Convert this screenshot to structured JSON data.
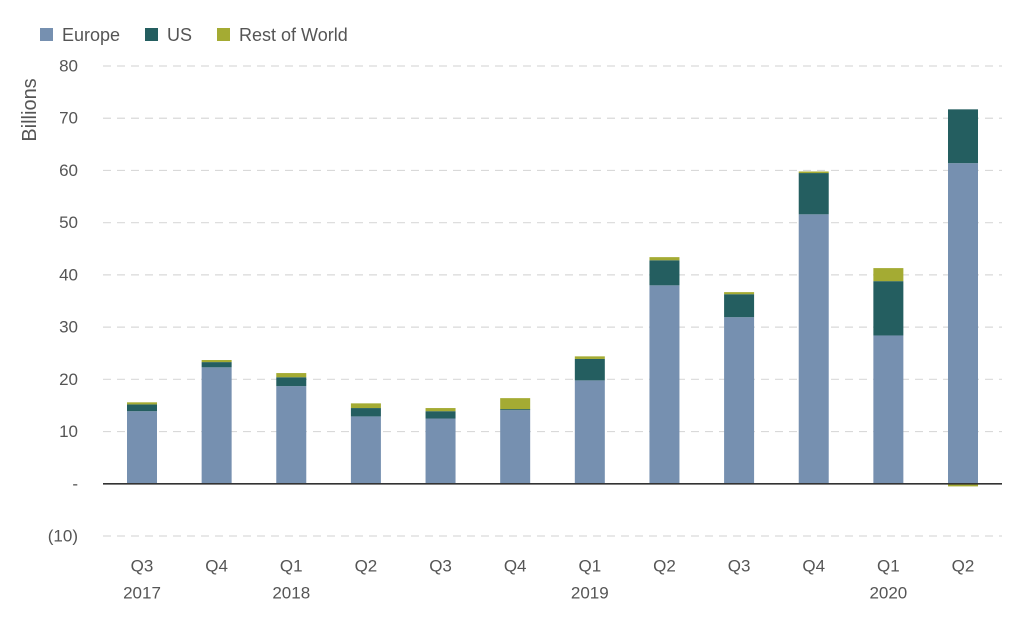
{
  "chart_data": {
    "type": "bar",
    "stacked": true,
    "title": "",
    "xlabel": "",
    "ylabel": "Billions",
    "ylim": [
      -10,
      80
    ],
    "yticks": [
      -10,
      0,
      10,
      20,
      30,
      40,
      50,
      60,
      70,
      80
    ],
    "ytick_labels": [
      "(10)",
      "-",
      "10",
      "20",
      "30",
      "40",
      "50",
      "60",
      "70",
      "80"
    ],
    "grid": true,
    "legend_position": "top-left",
    "categories": [
      "Q3 2017",
      "Q4 2017",
      "Q1 2018",
      "Q2 2018",
      "Q3 2018",
      "Q4 2018",
      "Q1 2019",
      "Q2 2019",
      "Q3 2019",
      "Q4 2019",
      "Q1 2020",
      "Q2 2020"
    ],
    "xtick_labels": [
      {
        "quarter": "Q3",
        "year": "2017"
      },
      {
        "quarter": "Q4",
        "year": ""
      },
      {
        "quarter": "Q1",
        "year": "2018"
      },
      {
        "quarter": "Q2",
        "year": ""
      },
      {
        "quarter": "Q3",
        "year": ""
      },
      {
        "quarter": "Q4",
        "year": ""
      },
      {
        "quarter": "Q1",
        "year": "2019"
      },
      {
        "quarter": "Q2",
        "year": ""
      },
      {
        "quarter": "Q3",
        "year": ""
      },
      {
        "quarter": "Q4",
        "year": ""
      },
      {
        "quarter": "Q1",
        "year": "2020"
      },
      {
        "quarter": "Q2",
        "year": ""
      }
    ],
    "series": [
      {
        "name": "Europe",
        "color": "#7690B0",
        "values": [
          13.9,
          22.3,
          18.7,
          12.9,
          12.5,
          14.1,
          19.8,
          38.0,
          31.9,
          51.6,
          28.4,
          61.4
        ]
      },
      {
        "name": "US",
        "color": "#245E60",
        "values": [
          1.3,
          1.0,
          1.7,
          1.6,
          1.4,
          0.2,
          4.1,
          4.8,
          4.4,
          7.9,
          10.4,
          10.3
        ]
      },
      {
        "name": "Rest of World",
        "color": "#A4AB33",
        "values": [
          0.4,
          0.4,
          0.8,
          0.9,
          0.6,
          2.1,
          0.5,
          0.6,
          0.4,
          0.3,
          2.5,
          -0.5
        ]
      }
    ]
  }
}
